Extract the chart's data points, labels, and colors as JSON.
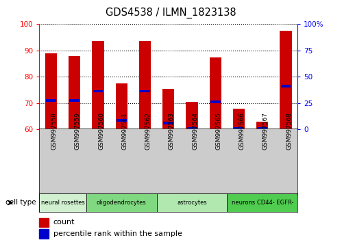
{
  "title": "GDS4538 / ILMN_1823138",
  "samples": [
    "GSM997558",
    "GSM997559",
    "GSM997560",
    "GSM997561",
    "GSM997562",
    "GSM997563",
    "GSM997564",
    "GSM997565",
    "GSM997566",
    "GSM997567",
    "GSM997568"
  ],
  "red_values": [
    89,
    88,
    93.5,
    77.5,
    93.5,
    75.5,
    70.5,
    87.5,
    68,
    63,
    97.5
  ],
  "blue_values": [
    71,
    71,
    74.5,
    63.5,
    74.5,
    62.5,
    60.5,
    70.5,
    60.5,
    60.5,
    76.5
  ],
  "cell_types": [
    {
      "label": "neural rosettes",
      "start": 0,
      "end": 2,
      "color": "#d0f0d0"
    },
    {
      "label": "oligodendrocytes",
      "start": 2,
      "end": 5,
      "color": "#80d880"
    },
    {
      "label": "astrocytes",
      "start": 5,
      "end": 8,
      "color": "#b0e8b0"
    },
    {
      "label": "neurons CD44- EGFR-",
      "start": 8,
      "end": 11,
      "color": "#50cc50"
    }
  ],
  "ylim": [
    60,
    100
  ],
  "y_ticks": [
    60,
    70,
    80,
    90,
    100
  ],
  "y2_ticks": [
    0,
    25,
    50,
    75,
    100
  ],
  "y2_labels": [
    "0",
    "25",
    "50",
    "75",
    "100%"
  ],
  "red_color": "#cc0000",
  "blue_color": "#0000cc",
  "bg_xlabels": "#cccccc",
  "legend_items": [
    "count",
    "percentile rank within the sample"
  ]
}
